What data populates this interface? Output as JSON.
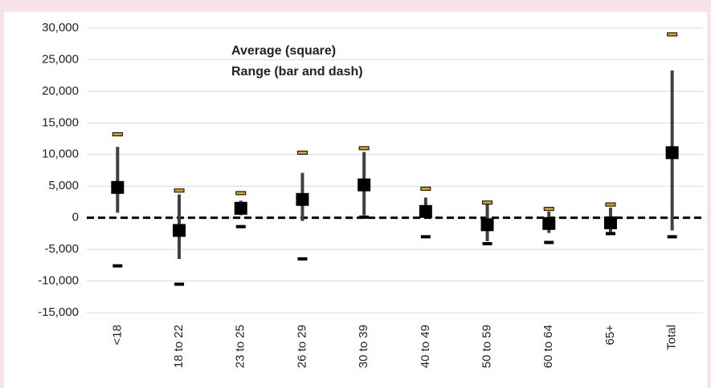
{
  "chart_data": {
    "type": "errorbar",
    "annotations": [
      "Average (square)",
      "Range (bar and dash)"
    ],
    "categories": [
      "<18",
      "18 to 22",
      "23 to 25",
      "26 to 29",
      "30 to 39",
      "40 to 49",
      "50 to 59",
      "60 to 64",
      "65+",
      "Total"
    ],
    "average": [
      4800,
      -2000,
      1500,
      2900,
      5200,
      1000,
      -1100,
      -900,
      -800,
      10300
    ],
    "bar_high": [
      11200,
      3700,
      2700,
      7100,
      10400,
      3200,
      2400,
      1000,
      1600,
      23300
    ],
    "bar_low": [
      800,
      -6500,
      400,
      -500,
      400,
      100,
      -3700,
      -2400,
      -2400,
      -2000
    ],
    "dash_high": [
      13200,
      4300,
      3900,
      10300,
      11000,
      4600,
      2400,
      1400,
      2100,
      29000
    ],
    "dash_low": [
      -7600,
      -10500,
      -1400,
      -6500,
      100,
      -3000,
      -4100,
      -3900,
      -2500,
      -3000
    ],
    "average_color": "#000000",
    "bar_color": "#404040",
    "dash_high_color": "#d4a017",
    "dash_low_color": "#000000",
    "ylim": [
      -15000,
      30000
    ],
    "yticks": [
      {
        "value": -15000,
        "label": "-15,000"
      },
      {
        "value": -10000,
        "label": "-10,000"
      },
      {
        "value": -5000,
        "label": "-5,000"
      },
      0,
      {
        "value": 5000,
        "label": "5,000"
      },
      {
        "value": 10000,
        "label": "10,000"
      },
      {
        "value": 15000,
        "label": "15,000"
      },
      {
        "value": 20000,
        "label": "20,000"
      },
      {
        "value": 25000,
        "label": "25,000"
      },
      {
        "value": 30000,
        "label": "30,000"
      }
    ],
    "grid": true
  }
}
